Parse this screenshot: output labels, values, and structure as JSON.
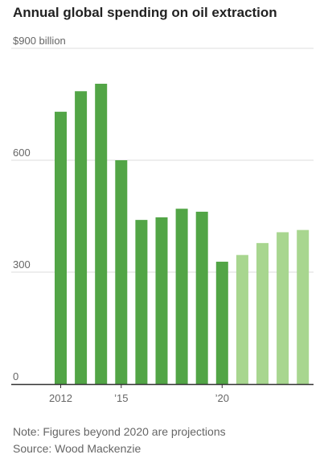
{
  "chart_data": {
    "type": "bar",
    "title": "Annual global spending on oil extraction",
    "categories": [
      "2012",
      "2013",
      "2014",
      "2015",
      "2016",
      "2017",
      "2018",
      "2019",
      "2020",
      "2021",
      "2022",
      "2023",
      "2024"
    ],
    "values": [
      730,
      785,
      805,
      600,
      440,
      447,
      470,
      462,
      328,
      346,
      378,
      407,
      413
    ],
    "projected_from": "2021",
    "ylim": [
      0,
      900
    ],
    "y_ticks": [
      {
        "value": 900,
        "label": "$900 billion"
      },
      {
        "value": 600,
        "label": "600"
      },
      {
        "value": 300,
        "label": "300"
      },
      {
        "value": 0,
        "label": "0"
      }
    ],
    "x_ticks": [
      {
        "category": "2012",
        "label": "2012"
      },
      {
        "category": "2015",
        "label": "’15"
      },
      {
        "category": "2020",
        "label": "’20"
      }
    ],
    "grid": true,
    "colors": {
      "actual": "#52a546",
      "projected": "#a8d68f",
      "grid": "#dcdcdc",
      "axis": "#333333"
    }
  },
  "footer": {
    "note": "Note: Figures beyond 2020 are projections",
    "source": "Source: Wood Mackenzie"
  }
}
